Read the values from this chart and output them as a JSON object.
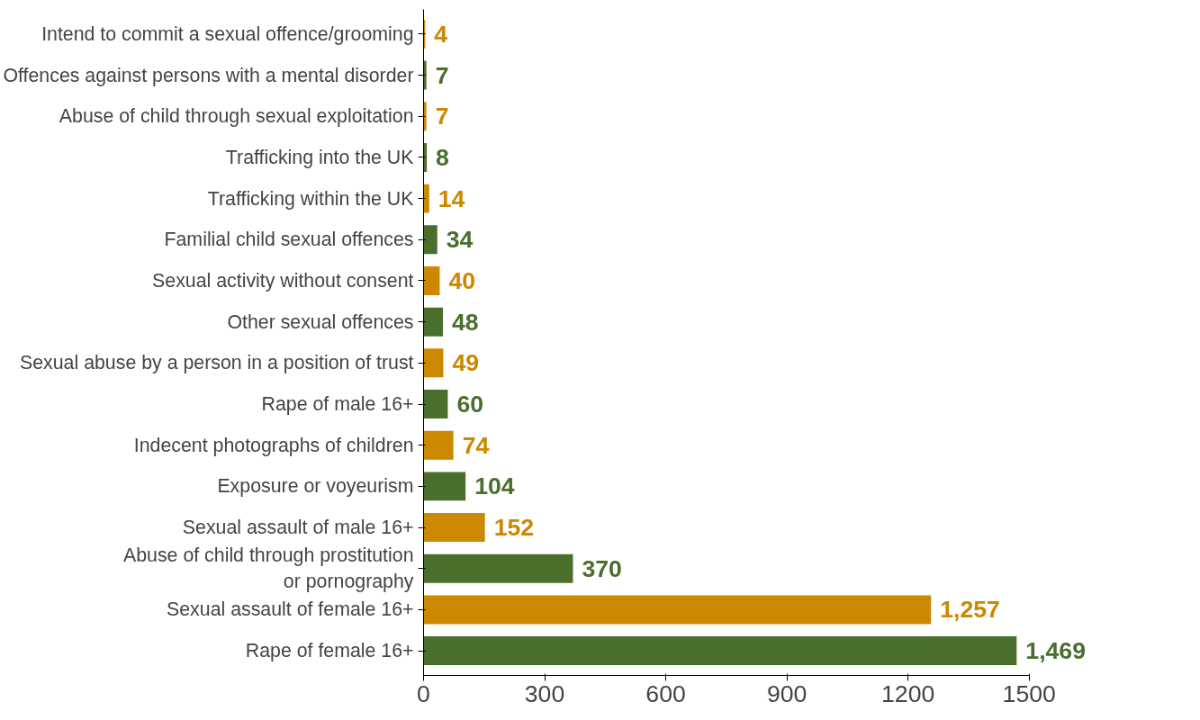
{
  "chart_data": {
    "type": "bar",
    "orientation": "horizontal",
    "categories": [
      "Intend to commit a sexual offence/grooming",
      "Offences against persons with a mental disorder",
      "Abuse of child through sexual exploitation",
      "Trafficking into the UK",
      "Trafficking within the UK",
      "Familial child sexual offences",
      "Sexual activity without consent",
      "Other sexual offences",
      "Sexual abuse by a person in a position of trust",
      "Rape of male 16+",
      "Indecent photographs of children",
      "Exposure or voyeurism",
      "Sexual assault of male 16+",
      "Abuse of child through prostitution or pornography",
      "Sexual assault of female 16+",
      "Rape of female 16+"
    ],
    "values": [
      4,
      7,
      7,
      8,
      14,
      34,
      40,
      48,
      49,
      60,
      74,
      104,
      152,
      370,
      1257,
      1469
    ],
    "value_labels": [
      "4",
      "7",
      "7",
      "8",
      "14",
      "34",
      "40",
      "48",
      "49",
      "60",
      "74",
      "104",
      "152",
      "370",
      "1,257",
      "1,469"
    ],
    "colors": [
      "#cc8800",
      "#4a6e2c",
      "#cc8800",
      "#4a6e2c",
      "#cc8800",
      "#4a6e2c",
      "#cc8800",
      "#4a6e2c",
      "#cc8800",
      "#4a6e2c",
      "#cc8800",
      "#4a6e2c",
      "#cc8800",
      "#4a6e2c",
      "#cc8800",
      "#4a6e2c"
    ],
    "xlim": [
      0,
      1500
    ],
    "xticks": [
      0,
      300,
      600,
      900,
      1200,
      1500
    ],
    "grid": false
  }
}
